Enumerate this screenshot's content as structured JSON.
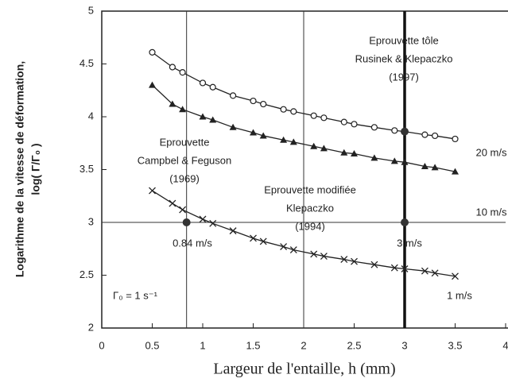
{
  "chart_data": {
    "type": "line",
    "xlabel": "Largeur de l'entaille, h (mm)",
    "ylabel": [
      "Logarithme de la vitesse de déformation,",
      "log( Γ/Γ₀ )"
    ],
    "xlim": [
      0,
      4
    ],
    "ylim": [
      2,
      5
    ],
    "xticks": [
      0,
      0.5,
      1,
      1.5,
      2,
      2.5,
      3,
      3.5,
      4
    ],
    "yticks": [
      2,
      2.5,
      3,
      3.5,
      4,
      4.5,
      5
    ],
    "x": [
      0.5,
      0.7,
      0.8,
      1.0,
      1.1,
      1.3,
      1.5,
      1.6,
      1.8,
      1.9,
      2.1,
      2.2,
      2.4,
      2.5,
      2.7,
      2.9,
      3.0,
      3.2,
      3.3,
      3.5
    ],
    "series": [
      {
        "name": "20 m/s",
        "color": "#222",
        "marker": "circle",
        "values": [
          4.61,
          4.47,
          4.42,
          4.32,
          4.28,
          4.2,
          4.15,
          4.12,
          4.07,
          4.05,
          4.01,
          3.99,
          3.95,
          3.93,
          3.9,
          3.87,
          3.86,
          3.83,
          3.82,
          3.79
        ]
      },
      {
        "name": "10 m/s",
        "color": "#222",
        "marker": "triangle",
        "values": [
          4.3,
          4.12,
          4.07,
          4.0,
          3.97,
          3.9,
          3.85,
          3.82,
          3.78,
          3.76,
          3.72,
          3.7,
          3.66,
          3.65,
          3.61,
          3.58,
          3.57,
          3.53,
          3.52,
          3.48
        ]
      },
      {
        "name": "1 m/s",
        "color": "#222",
        "marker": "cross",
        "values": [
          3.3,
          3.18,
          3.12,
          3.03,
          2.99,
          2.92,
          2.85,
          2.82,
          2.77,
          2.74,
          2.7,
          2.68,
          2.65,
          2.63,
          2.6,
          2.57,
          2.56,
          2.54,
          2.52,
          2.49
        ]
      }
    ],
    "vlines": [
      0.84,
      2
    ],
    "vline_thick": 3,
    "hline": 3,
    "points": {
      "x": [
        0.84,
        3,
        3
      ],
      "y": [
        3,
        3,
        3.86
      ]
    },
    "annotations": [
      [
        "Eprouvette tôle",
        "Rusinek & Klepaczko",
        "(1997)"
      ],
      [
        "Eprouvette",
        "Campbel & Feguson",
        "(1969)"
      ],
      [
        "Eprouvette modifiée",
        "Klepaczko",
        "(1994)"
      ],
      [
        "0.84 m/s"
      ],
      [
        "3 m/s"
      ],
      [
        "Γ₀ = 1 s⁻¹"
      ]
    ]
  }
}
